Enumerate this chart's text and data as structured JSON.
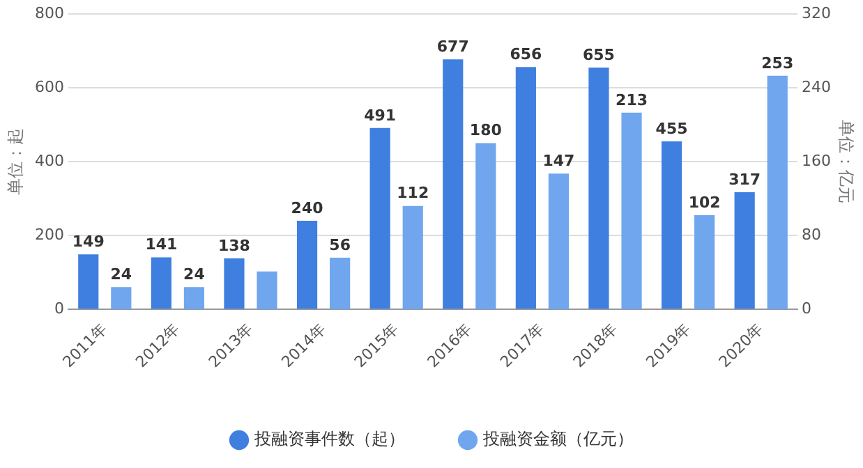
{
  "chart_data": {
    "type": "bar",
    "categories": [
      "2011年",
      "2012年",
      "2013年",
      "2014年",
      "2015年",
      "2016年",
      "2017年",
      "2018年",
      "2019年",
      "2020年"
    ],
    "series": [
      {
        "name": "投融资事件数（起）",
        "color": "#3f7fe0",
        "values": [
          149,
          141,
          138,
          240,
          491,
          677,
          656,
          655,
          455,
          317
        ],
        "value_labels": [
          "149",
          "141",
          "138",
          "240",
          "491",
          "677",
          "656",
          "655",
          "455",
          "317"
        ]
      },
      {
        "name": "投融资金额（亿元）",
        "color": "#6fa6ee",
        "axis": "y2",
        "values": [
          24,
          24,
          41,
          56,
          112,
          180,
          147,
          213,
          102,
          253
        ],
        "value_labels": [
          "24",
          "24",
          null,
          "56",
          "112",
          "180",
          "147",
          "213",
          "102",
          "253"
        ]
      }
    ],
    "ylabel": "单位：起",
    "y2label": "单位：亿元",
    "ylim": [
      0,
      800
    ],
    "yticks": [
      0,
      200,
      400,
      600,
      800
    ],
    "y2lim": [
      0,
      320
    ],
    "y2ticks": [
      0,
      80,
      160,
      240,
      320
    ],
    "grid": "y",
    "legend": "bottom"
  }
}
